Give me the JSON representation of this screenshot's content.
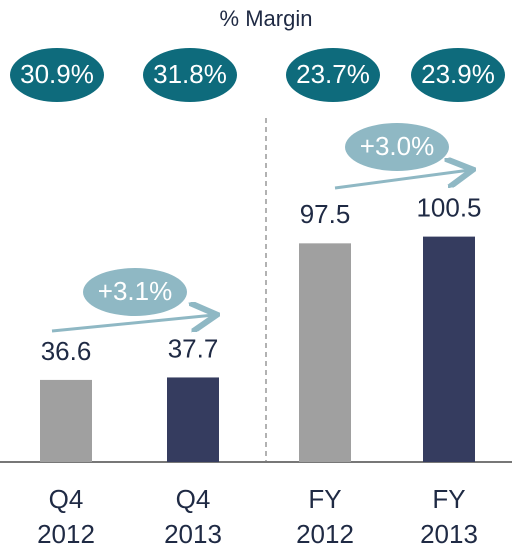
{
  "chart_data": {
    "type": "bar",
    "title": "% Margin",
    "categories": [
      "Q4 2012",
      "Q4 2013",
      "FY 2012",
      "FY 2013"
    ],
    "values": [
      36.6,
      37.7,
      97.5,
      100.5
    ],
    "colors": [
      "#a0a0a0",
      "#353c5f",
      "#a0a0a0",
      "#353c5f"
    ],
    "ylim": [
      0,
      206
    ],
    "margins": [
      "30.9%",
      "31.8%",
      "23.7%",
      "23.9%"
    ],
    "growth": [
      "+3.1%",
      "+3.0%"
    ]
  }
}
